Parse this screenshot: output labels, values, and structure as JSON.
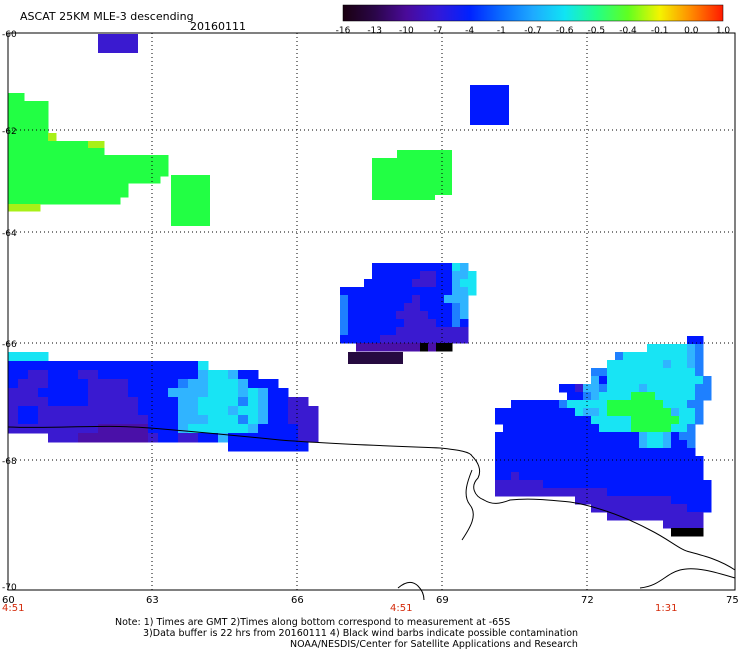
{
  "header": {
    "title": "ASCAT 25KM MLE-3 descending",
    "date": "20160111"
  },
  "colorbar": {
    "labels": [
      "-16",
      "-13",
      "-10",
      "-7",
      "-4",
      "-1",
      "-0.7",
      "-0.6",
      "-0.5",
      "-0.4",
      "-0.1",
      "0.0",
      "1.0"
    ],
    "colors": [
      "#1a0010",
      "#2a0648",
      "#4a0a9a",
      "#3318d8",
      "#0022ff",
      "#0a6cff",
      "#1eaaff",
      "#10e4f4",
      "#22ff88",
      "#60ff20",
      "#f4f400",
      "#ff8a00",
      "#ff1a00"
    ]
  },
  "axes": {
    "lat_labels": [
      "-60",
      "-62",
      "-64",
      "-66",
      "-68",
      "-70"
    ],
    "lon_labels": [
      "60",
      "63",
      "66",
      "69",
      "72",
      "75"
    ],
    "times": [
      "4:51",
      "4:51",
      "1:31"
    ]
  },
  "notes": {
    "line1": "Note: 1) Times are GMT 2)Times along bottom correspond to measurement at -65S",
    "line2": "3)Data buffer is 22 hrs from 20160111 4) Black wind barbs indicate possible contamination",
    "line3": "NOAA/NESDIS/Center for Satellite Applications and Research"
  },
  "map_data": {
    "projection": "equirectangular",
    "lon_range": [
      60,
      75
    ],
    "lat_range": [
      -60,
      -70
    ],
    "palette": {
      "dp": "#260a40",
      "p": "#4a10a8",
      "v": "#3a1ad0",
      "b": "#0018ff",
      "m": "#1a4cff",
      "l": "#1e80ff",
      "s": "#30b4ff",
      "c": "#18e4f4",
      "g": "#22ff44",
      "y": "#a8f018"
    }
  }
}
